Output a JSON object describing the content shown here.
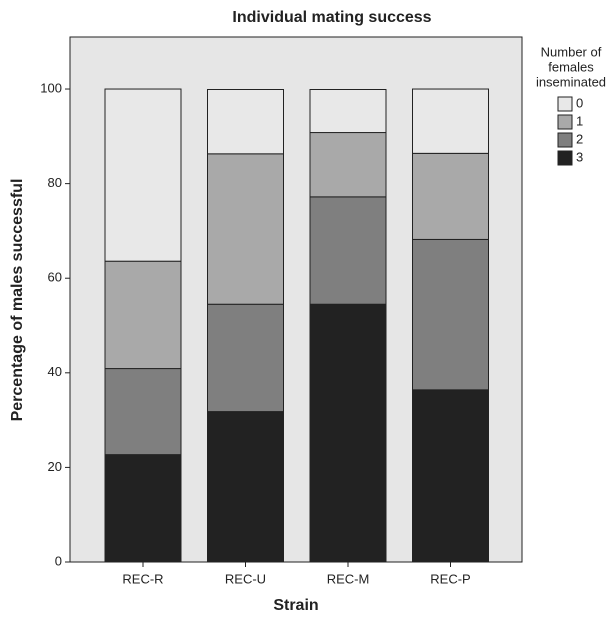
{
  "chart_data": {
    "type": "stacked_bar",
    "title": "Individual mating success",
    "x_label": "Strain",
    "y_label": "Percentage of males successful",
    "categories": [
      "REC-R",
      "REC-U",
      "REC-M",
      "REC-P"
    ],
    "legend_title": [
      "Number of",
      "females",
      "inseminated"
    ],
    "series": [
      {
        "name": "0",
        "color": "#e8e8e8",
        "values": [
          36.4,
          13.6,
          9.1,
          13.6
        ]
      },
      {
        "name": "1",
        "color": "#a9a9a9",
        "values": [
          22.7,
          31.8,
          13.6,
          18.2
        ]
      },
      {
        "name": "2",
        "color": "#7f7f7f",
        "values": [
          18.2,
          22.7,
          22.7,
          31.8
        ]
      },
      {
        "name": "3",
        "color": "#222222",
        "values": [
          22.7,
          31.8,
          54.5,
          36.4
        ]
      }
    ],
    "ylim": [
      0,
      111
    ],
    "yticks": [
      0,
      20,
      40,
      60,
      80,
      100
    ]
  }
}
